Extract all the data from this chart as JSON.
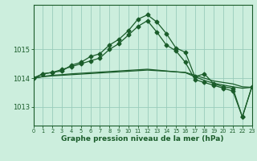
{
  "hours": [
    0,
    1,
    2,
    3,
    4,
    5,
    6,
    7,
    8,
    9,
    10,
    11,
    12,
    13,
    14,
    15,
    16,
    17,
    18,
    19,
    20,
    21,
    22,
    23
  ],
  "line1": [
    1014.0,
    1014.05,
    1014.08,
    1014.1,
    1014.12,
    1014.14,
    1014.16,
    1014.18,
    1014.2,
    1014.22,
    1014.24,
    1014.26,
    1014.28,
    1014.26,
    1014.24,
    1014.22,
    1014.2,
    1014.1,
    1014.0,
    1013.9,
    1013.85,
    1013.8,
    1013.7,
    1013.68
  ],
  "line2": [
    1014.0,
    1014.06,
    1014.1,
    1014.12,
    1014.15,
    1014.17,
    1014.19,
    1014.21,
    1014.23,
    1014.25,
    1014.27,
    1014.29,
    1014.31,
    1014.28,
    1014.25,
    1014.22,
    1014.19,
    1014.05,
    1013.92,
    1013.82,
    1013.76,
    1013.7,
    1013.65,
    1013.68
  ],
  "line_main": [
    1014.0,
    1014.15,
    1014.2,
    1014.25,
    1014.45,
    1014.55,
    1014.75,
    1014.85,
    1015.15,
    1015.35,
    1015.65,
    1016.05,
    1016.2,
    1015.95,
    1015.55,
    1015.05,
    1014.9,
    1014.05,
    1014.15,
    1013.8,
    1013.7,
    1013.65,
    1012.65,
    1013.7
  ],
  "line_extra": [
    1014.0,
    1014.15,
    1014.2,
    1014.3,
    1014.4,
    1014.5,
    1014.6,
    1014.7,
    1015.0,
    1015.2,
    1015.5,
    1015.8,
    1016.0,
    1015.6,
    1015.15,
    1014.95,
    1014.55,
    1013.95,
    1013.85,
    1013.75,
    1013.65,
    1013.55,
    1012.65,
    1013.7
  ],
  "bg_color": "#cceedd",
  "grid_color": "#99ccbb",
  "line_color": "#1a5c2a",
  "xlabel": "Graphe pression niveau de la mer (hPa)",
  "yticks": [
    1013,
    1014,
    1015
  ],
  "ylim": [
    1012.35,
    1016.55
  ],
  "xlim": [
    0,
    23
  ]
}
